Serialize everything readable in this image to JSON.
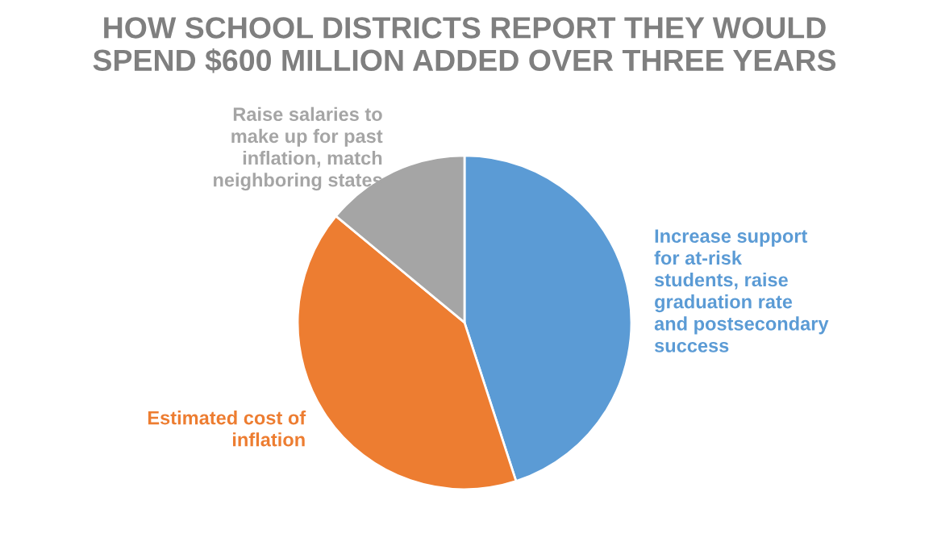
{
  "chart_data": {
    "type": "pie",
    "title": "HOW SCHOOL DISTRICTS REPORT THEY WOULD\nSPEND $600 MILLION ADDED OVER THREE YEARS",
    "categories": [
      "Increase support\nfor at-risk\nstudents, raise\ngraduation rate\nand postsecondary\nsuccess",
      "Estimated cost of\ninflation",
      "Raise salaries to\nmake up for past\ninflation, match\nneighboring states"
    ],
    "values": [
      45,
      41,
      14
    ],
    "colors": [
      "#5b9bd5",
      "#ed7d31",
      "#a5a5a5"
    ]
  }
}
